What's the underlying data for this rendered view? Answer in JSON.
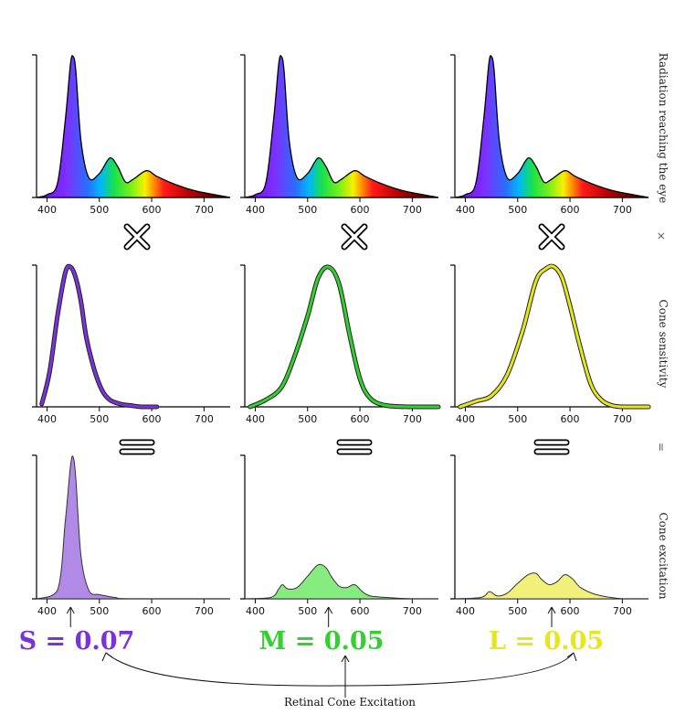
{
  "row_labels": {
    "radiation": "Radiation reaching the eye",
    "times": "×",
    "sensitivity": "Cone sensitivity",
    "equals": "=",
    "excitation": "Cone excitation"
  },
  "x_ticks": [
    "400",
    "500",
    "600",
    "700"
  ],
  "cones": [
    {
      "name": "S",
      "value_text": "S = 0.07",
      "value": 0.07,
      "color": "#7b32d8",
      "fill": "#b08ae6",
      "peak_nm": 445
    },
    {
      "name": "M",
      "value_text": "M = 0.05",
      "value": 0.05,
      "color": "#33d12e",
      "fill": "#86ec80",
      "peak_nm": 540
    },
    {
      "name": "L",
      "value_text": "L = 0.05",
      "value": 0.05,
      "color": "#e6e61a",
      "fill": "#f1f17a",
      "peak_nm": 565
    }
  ],
  "caption": "Retinal Cone Excitation",
  "chart_data": {
    "type": "area",
    "x_range": [
      380,
      750
    ],
    "radiation_spectrum": {
      "x": [
        380,
        400,
        420,
        435,
        445,
        450,
        455,
        465,
        480,
        500,
        520,
        535,
        550,
        565,
        590,
        610,
        640,
        680,
        720,
        750
      ],
      "y": [
        0.0,
        0.02,
        0.1,
        0.55,
        0.95,
        1.0,
        0.9,
        0.4,
        0.14,
        0.17,
        0.28,
        0.22,
        0.11,
        0.13,
        0.19,
        0.15,
        0.1,
        0.05,
        0.02,
        0.0
      ]
    },
    "cone_sensitivity": [
      {
        "name": "S",
        "x": [
          390,
          405,
          420,
          435,
          445,
          455,
          465,
          475,
          490,
          505,
          520,
          540,
          560,
          580,
          610
        ],
        "y": [
          0.02,
          0.25,
          0.65,
          0.96,
          1.0,
          0.92,
          0.75,
          0.5,
          0.27,
          0.12,
          0.05,
          0.02,
          0.01,
          0.0,
          0.0
        ]
      },
      {
        "name": "M",
        "x": [
          390,
          420,
          450,
          475,
          500,
          520,
          540,
          560,
          580,
          600,
          620,
          650,
          700,
          750
        ],
        "y": [
          0.0,
          0.05,
          0.14,
          0.36,
          0.65,
          0.92,
          1.0,
          0.88,
          0.52,
          0.2,
          0.06,
          0.01,
          0.0,
          0.0
        ]
      },
      {
        "name": "L",
        "x": [
          390,
          420,
          450,
          480,
          510,
          535,
          555,
          570,
          585,
          600,
          620,
          640,
          660,
          680,
          700,
          720,
          750
        ],
        "y": [
          0.0,
          0.04,
          0.08,
          0.23,
          0.55,
          0.9,
          0.99,
          1.0,
          0.92,
          0.72,
          0.42,
          0.16,
          0.05,
          0.01,
          0.0,
          0.0,
          0.0
        ]
      }
    ],
    "cone_excitation": [
      {
        "name": "S",
        "x": [
          380,
          420,
          435,
          445,
          450,
          455,
          465,
          480,
          500,
          530,
          560,
          750
        ],
        "y": [
          0.0,
          0.06,
          0.55,
          0.94,
          1.0,
          0.85,
          0.3,
          0.06,
          0.03,
          0.01,
          0.0,
          0.0
        ]
      },
      {
        "name": "M",
        "x": [
          380,
          430,
          445,
          452,
          462,
          480,
          500,
          520,
          535,
          545,
          560,
          575,
          590,
          605,
          620,
          650,
          700,
          750
        ],
        "y": [
          0.0,
          0.01,
          0.07,
          0.1,
          0.07,
          0.08,
          0.16,
          0.24,
          0.22,
          0.16,
          0.09,
          0.08,
          0.1,
          0.05,
          0.02,
          0.01,
          0.0,
          0.0
        ]
      },
      {
        "name": "L",
        "x": [
          380,
          430,
          445,
          452,
          462,
          480,
          500,
          520,
          535,
          545,
          560,
          575,
          590,
          605,
          620,
          650,
          700,
          750
        ],
        "y": [
          0.0,
          0.01,
          0.05,
          0.04,
          0.02,
          0.04,
          0.11,
          0.17,
          0.18,
          0.14,
          0.1,
          0.12,
          0.17,
          0.14,
          0.08,
          0.03,
          0.0,
          0.0
        ]
      }
    ]
  }
}
